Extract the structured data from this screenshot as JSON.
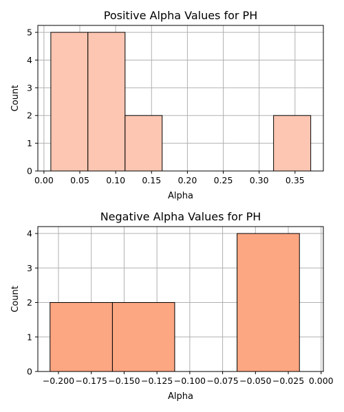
{
  "chart_data": [
    {
      "type": "bar",
      "title": "Positive Alpha Values for PH",
      "xlabel": "Alpha",
      "ylabel": "Count",
      "color": "#fdc6b2",
      "grid": true,
      "xlim": [
        -0.0085,
        0.3895
      ],
      "ylim": [
        0,
        5.25
      ],
      "xticks": [
        0.0,
        0.05,
        0.1,
        0.15,
        0.2,
        0.25,
        0.3,
        0.35
      ],
      "xtick_labels": [
        "0.00",
        "0.05",
        "0.10",
        "0.15",
        "0.20",
        "0.25",
        "0.30",
        "0.35"
      ],
      "yticks": [
        0,
        1,
        2,
        3,
        4,
        5
      ],
      "ytick_labels": [
        "0",
        "1",
        "2",
        "3",
        "4",
        "5"
      ],
      "bins": [
        {
          "x0": 0.0096,
          "x1": 0.0613,
          "value": 5
        },
        {
          "x0": 0.0613,
          "x1": 0.1131,
          "value": 5
        },
        {
          "x0": 0.1131,
          "x1": 0.1648,
          "value": 2
        },
        {
          "x0": 0.1648,
          "x1": 0.2166,
          "value": 0
        },
        {
          "x0": 0.2166,
          "x1": 0.2684,
          "value": 0
        },
        {
          "x0": 0.2684,
          "x1": 0.3201,
          "value": 0
        },
        {
          "x0": 0.3201,
          "x1": 0.3719,
          "value": 2
        }
      ]
    },
    {
      "type": "bar",
      "title": "Negative Alpha Values for PH",
      "xlabel": "Alpha",
      "ylabel": "Count",
      "color": "#fca682",
      "grid": true,
      "xlim": [
        -0.2157,
        0.0017
      ],
      "ylim": [
        0,
        4.2
      ],
      "xticks": [
        -0.2,
        -0.175,
        -0.15,
        -0.125,
        -0.1,
        -0.075,
        -0.05,
        -0.025,
        0.0
      ],
      "xtick_labels": [
        "−0.200",
        "−0.175",
        "−0.150",
        "−0.125",
        "−0.100",
        "−0.075",
        "−0.050",
        "−0.025",
        "0.000"
      ],
      "yticks": [
        0,
        1,
        2,
        3,
        4
      ],
      "ytick_labels": [
        "0",
        "1",
        "2",
        "3",
        "4"
      ],
      "bins": [
        {
          "x0": -0.2064,
          "x1": -0.1589,
          "value": 2
        },
        {
          "x0": -0.1589,
          "x1": -0.1115,
          "value": 2
        },
        {
          "x0": -0.1115,
          "x1": -0.064,
          "value": 0
        },
        {
          "x0": -0.064,
          "x1": -0.0165,
          "value": 4
        }
      ]
    }
  ]
}
